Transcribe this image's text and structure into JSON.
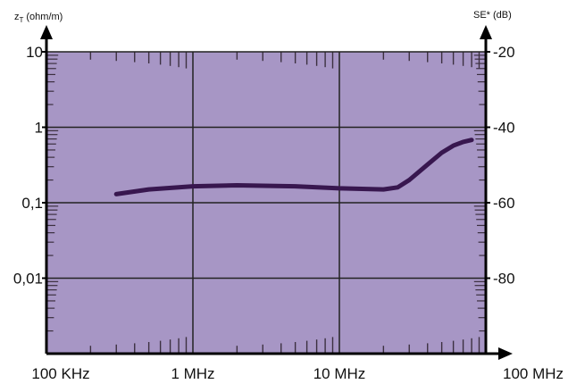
{
  "chart_data": {
    "type": "line",
    "x_scale": "log",
    "y_scale": "log",
    "xlim": [
      100000,
      100000000
    ],
    "ylim": [
      0.001,
      10
    ],
    "y2lim": [
      -100,
      -20
    ],
    "grid": true,
    "left_axis": {
      "title_main": "z",
      "title_sub": "T",
      "title_unit": "(ohm/m)",
      "ticks": [
        {
          "value": 10,
          "label": "10"
        },
        {
          "value": 1,
          "label": "1"
        },
        {
          "value": 0.1,
          "label": "0,1"
        },
        {
          "value": 0.01,
          "label": "0,01"
        }
      ]
    },
    "right_axis": {
      "title": "SE* (dB)",
      "ticks": [
        {
          "value": -20,
          "label": "-20"
        },
        {
          "value": -40,
          "label": "-40"
        },
        {
          "value": -60,
          "label": "-60"
        },
        {
          "value": -80,
          "label": "-80"
        }
      ]
    },
    "x_ticks": [
      {
        "value": 100000,
        "label": "100 KHz"
      },
      {
        "value": 1000000,
        "label": "1 MHz"
      },
      {
        "value": 10000000,
        "label": "10 MHz"
      },
      {
        "value": 100000000,
        "label": "100 MHz"
      }
    ],
    "series": [
      {
        "x": [
          300000,
          500000,
          1000000,
          2000000,
          5000000,
          10000000,
          20000000,
          25000000,
          30000000,
          40000000,
          50000000,
          60000000,
          70000000,
          80000000
        ],
        "y": [
          0.13,
          0.15,
          0.165,
          0.17,
          0.165,
          0.155,
          0.15,
          0.16,
          0.2,
          0.32,
          0.46,
          0.57,
          0.64,
          0.68
        ]
      }
    ],
    "colors": {
      "plot_background": "#a796c5",
      "line": "#38174f",
      "grid": "#222222"
    }
  }
}
